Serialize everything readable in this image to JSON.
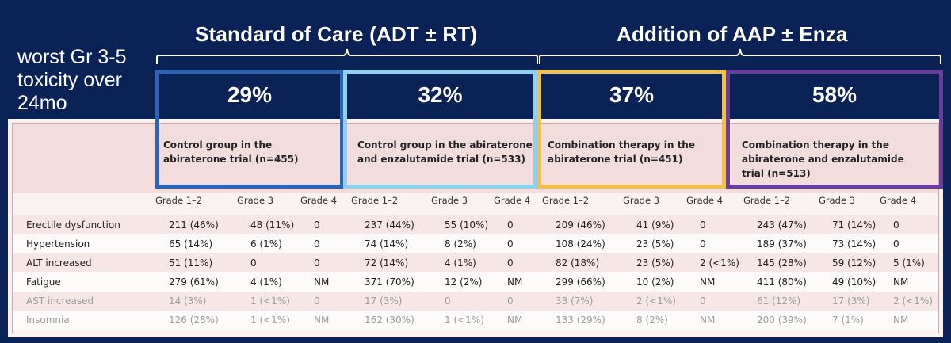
{
  "caption": "worst Gr 3-5 toxicity over 24mo",
  "groups": {
    "soc": "Standard of Care (ADT ± RT)",
    "aap": "Addition of AAP ± Enza"
  },
  "percentages": [
    "29%",
    "32%",
    "37%",
    "58%"
  ],
  "box_colors": [
    "#2f63b6",
    "#8fd0ee",
    "#f2c04a",
    "#6a3c9c"
  ],
  "table": {
    "column_groups": [
      "Control group in the abiraterone trial (n=455)",
      "Control group in the abiraterone and enzalutamide trial (n=533)",
      "Combination therapy in the abiraterone trial (n=451)",
      "Combination therapy in the abiraterone and enzalutamide trial (n=513)"
    ],
    "grade_labels": [
      "Grade 1–2",
      "Grade 3",
      "Grade 4"
    ],
    "rows": [
      {
        "label": "Erectile dysfunction",
        "values": [
          "211 (46%)",
          "48 (11%)",
          "0",
          "237 (44%)",
          "55 (10%)",
          "0",
          "209 (46%)",
          "41 (9%)",
          "0",
          "243 (47%)",
          "71 (14%)",
          "0"
        ]
      },
      {
        "label": "Hypertension",
        "values": [
          "65 (14%)",
          "6 (1%)",
          "0",
          "74 (14%)",
          "8 (2%)",
          "0",
          "108 (24%)",
          "23 (5%)",
          "0",
          "189 (37%)",
          "73 (14%)",
          "0"
        ]
      },
      {
        "label": "ALT increased",
        "values": [
          "51 (11%)",
          "0",
          "0",
          "72 (14%)",
          "4 (1%)",
          "0",
          "82 (18%)",
          "23 (5%)",
          "2 (<1%)",
          "145 (28%)",
          "59 (12%)",
          "5 (1%)"
        ]
      },
      {
        "label": "Fatigue",
        "values": [
          "279 (61%)",
          "4 (1%)",
          "NM",
          "371 (70%)",
          "12 (2%)",
          "NM",
          "299 (66%)",
          "10 (2%)",
          "NM",
          "411 (80%)",
          "49 (10%)",
          "NM"
        ]
      },
      {
        "label": "AST increased",
        "values": [
          "14 (3%)",
          "1 (<1%)",
          "0",
          "17 (3%)",
          "0",
          "0",
          "33 (7%)",
          "2 (<1%)",
          "0",
          "61 (12%)",
          "17 (3%)",
          "2 (<1%)"
        ]
      },
      {
        "label": "Insomnia",
        "values": [
          "126 (28%)",
          "1 (<1%)",
          "NM",
          "162 (30%)",
          "1 (<1%)",
          "NM",
          "133 (29%)",
          "8 (2%)",
          "NM",
          "200 (39%)",
          "7 (1%)",
          "NM"
        ]
      }
    ]
  }
}
